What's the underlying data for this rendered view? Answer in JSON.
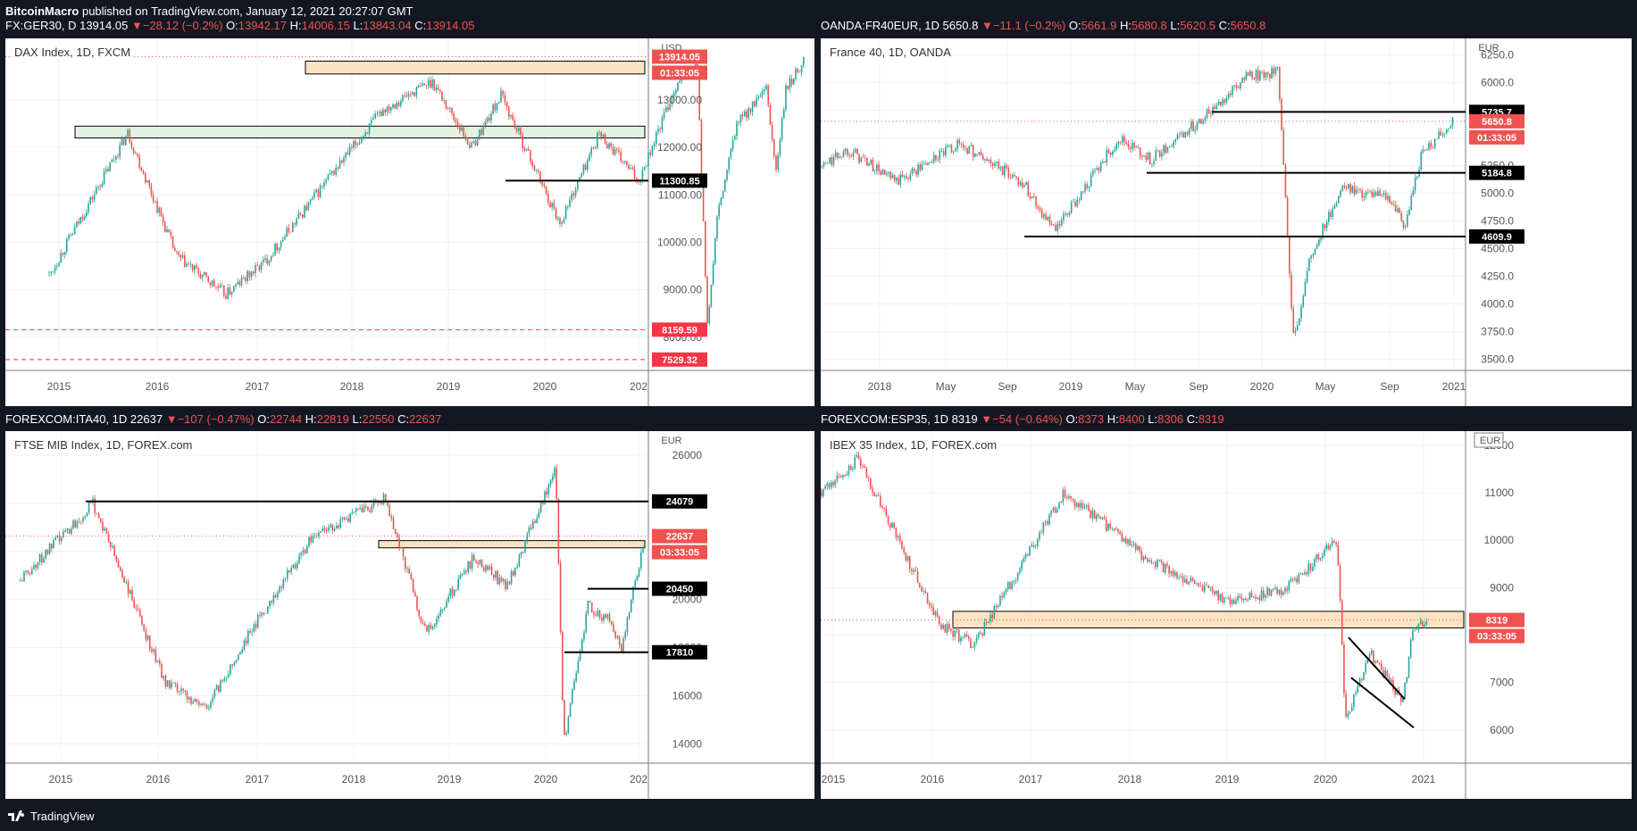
{
  "header": {
    "publisher": "BitcoinMacro",
    "published_text": "published on TradingView.com, January 12, 2021 20:27:07 GMT"
  },
  "footer": {
    "brand": "TradingView"
  },
  "colors": {
    "up": "#26a69a",
    "down": "#ef5350",
    "zone_orange": "#fbe3c4",
    "zone_green": "#e3f1e3",
    "price_label": "#ef5350",
    "level_label": "#000000"
  },
  "panels": [
    {
      "ohlc": {
        "symbol": "FX:GER30, D",
        "last": "13914.05",
        "change": "−28.12 (−0.2%)",
        "o": "13942.17",
        "h": "14006.15",
        "l": "13843.04",
        "c": "13914.05"
      },
      "title": "DAX Index, 1D, FXCM",
      "currency": "USD",
      "price_label": "13914.05",
      "countdown": "01:33:05",
      "level_labels": [
        "11300.85",
        "8159.59",
        "7529.32"
      ],
      "y_ticks": [
        "13000.00",
        "12000.00",
        "11000.00",
        "10000.00",
        "9000.00",
        "8000.00"
      ],
      "x_ticks": [
        "2015",
        "2016",
        "2017",
        "2018",
        "2019",
        "2020",
        "202"
      ]
    },
    {
      "ohlc": {
        "symbol": "OANDA:FR40EUR, 1D",
        "last": "5650.8",
        "change": "−11.1 (−0.2%)",
        "o": "5661.9",
        "h": "5680.8",
        "l": "5620.5",
        "c": "5650.8"
      },
      "title": "France 40, 1D, OANDA",
      "currency": "EUR",
      "price_label": "5650.8",
      "countdown": "01:33:05",
      "level_labels": [
        "5735.7",
        "5184.8",
        "4609.9"
      ],
      "y_ticks": [
        "6250.0",
        "6000.0",
        "5750.0",
        "5500.0",
        "5250.0",
        "5000.0",
        "4750.0",
        "4500.0",
        "4250.0",
        "4000.0",
        "3750.0",
        "3500.0"
      ],
      "x_ticks": [
        "2018",
        "May",
        "Sep",
        "2019",
        "May",
        "Sep",
        "2020",
        "May",
        "Sep",
        "2021"
      ]
    },
    {
      "ohlc": {
        "symbol": "FOREXCOM:ITA40, 1D",
        "last": "22637",
        "change": "−107 (−0.47%)",
        "o": "22744",
        "h": "22819",
        "l": "22550",
        "c": "22637"
      },
      "title": "FTSE MIB Index, 1D, FOREX.com",
      "currency": "EUR",
      "price_label": "22637",
      "countdown": "03:33:05",
      "level_labels": [
        "24079",
        "20450",
        "17810"
      ],
      "y_ticks": [
        "26000",
        "24000",
        "22000",
        "20000",
        "18000",
        "16000",
        "14000"
      ],
      "x_ticks": [
        "2015",
        "2016",
        "2017",
        "2018",
        "2019",
        "2020",
        "202"
      ]
    },
    {
      "ohlc": {
        "symbol": "FOREXCOM:ESP35, 1D",
        "last": "8319",
        "change": "−54 (−0.64%)",
        "o": "8373",
        "h": "8400",
        "l": "8306",
        "c": "8319"
      },
      "title": "IBEX 35 Index, 1D, FOREX.com",
      "currency": "EUR",
      "price_label": "8319",
      "countdown": "03:33:05",
      "level_labels": [],
      "y_ticks": [
        "12000",
        "11000",
        "10000",
        "9000",
        "8000",
        "7000",
        "6000"
      ],
      "x_ticks": [
        "2015",
        "2016",
        "2017",
        "2018",
        "2019",
        "2020",
        "2021"
      ]
    }
  ],
  "chart_data": [
    {
      "type": "candlestick",
      "title": "DAX Index, 1D, FXCM",
      "x": [
        "2014-08",
        "2015-04",
        "2015-09",
        "2016-02",
        "2016-06",
        "2017-01",
        "2017-06",
        "2017-11",
        "2018-03",
        "2018-06",
        "2018-12",
        "2019-04",
        "2019-08",
        "2019-12",
        "2020-02",
        "2020-03",
        "2020-04",
        "2020-06",
        "2020-09",
        "2020-10",
        "2020-11",
        "2021-01"
      ],
      "values": [
        9300,
        12300,
        9700,
        8900,
        9600,
        11500,
        12800,
        13400,
        12000,
        13100,
        10400,
        12300,
        11300,
        13400,
        13700,
        8200,
        10500,
        12500,
        13200,
        11500,
        13200,
        13914
      ],
      "ylim": [
        7300,
        14300
      ],
      "levels": [
        13914.05,
        11300.85,
        8159.59,
        7529.32
      ],
      "zones": [
        [
          13550,
          13820
        ],
        [
          12200,
          12450
        ]
      ]
    },
    {
      "type": "candlestick",
      "title": "France 40, 1D, OANDA",
      "x": [
        "2017-09",
        "2017-11",
        "2018-02",
        "2018-06",
        "2018-10",
        "2018-12",
        "2019-04",
        "2019-06",
        "2019-09",
        "2019-12",
        "2020-02",
        "2020-03",
        "2020-04",
        "2020-06",
        "2020-09",
        "2020-10",
        "2020-11",
        "2021-01"
      ],
      "values": [
        5200,
        5400,
        5100,
        5450,
        5100,
        4650,
        5500,
        5300,
        5650,
        6050,
        6100,
        3650,
        4400,
        5050,
        4950,
        4700,
        5350,
        5650
      ],
      "ylim": [
        3400,
        6400
      ],
      "levels": [
        5735.7,
        5184.8,
        4609.9
      ]
    },
    {
      "type": "candlestick",
      "title": "FTSE MIB Index, 1D, FOREX.com",
      "x": [
        "2014-08",
        "2015-05",
        "2016-02",
        "2016-07",
        "2017-01",
        "2017-08",
        "2018-05",
        "2018-10",
        "2019-04",
        "2019-08",
        "2020-02",
        "2020-03",
        "2020-06",
        "2020-09",
        "2020-10",
        "2021-01"
      ],
      "values": [
        20800,
        24000,
        16500,
        15500,
        19000,
        22600,
        24200,
        18600,
        21800,
        20500,
        25500,
        14000,
        19800,
        19000,
        17800,
        22637
      ],
      "ylim": [
        13200,
        27000
      ],
      "levels": [
        24079,
        22637,
        20450,
        17810
      ],
      "zones": [
        [
          22150,
          22450
        ]
      ]
    },
    {
      "type": "candlestick",
      "title": "IBEX 35 Index, 1D, FOREX.com",
      "x": [
        "2014-08",
        "2015-04",
        "2016-02",
        "2016-06",
        "2017-05",
        "2018-03",
        "2019-01",
        "2019-08",
        "2020-02",
        "2020-03",
        "2020-06",
        "2020-10",
        "2020-11",
        "2021-01"
      ],
      "values": [
        10400,
        11700,
        8200,
        7800,
        11000,
        9600,
        8700,
        9000,
        10000,
        6200,
        7600,
        6600,
        8000,
        8319
      ],
      "ylim": [
        5300,
        12300
      ],
      "levels": [
        8319
      ],
      "zones": [
        [
          8150,
          8500
        ]
      ]
    }
  ]
}
